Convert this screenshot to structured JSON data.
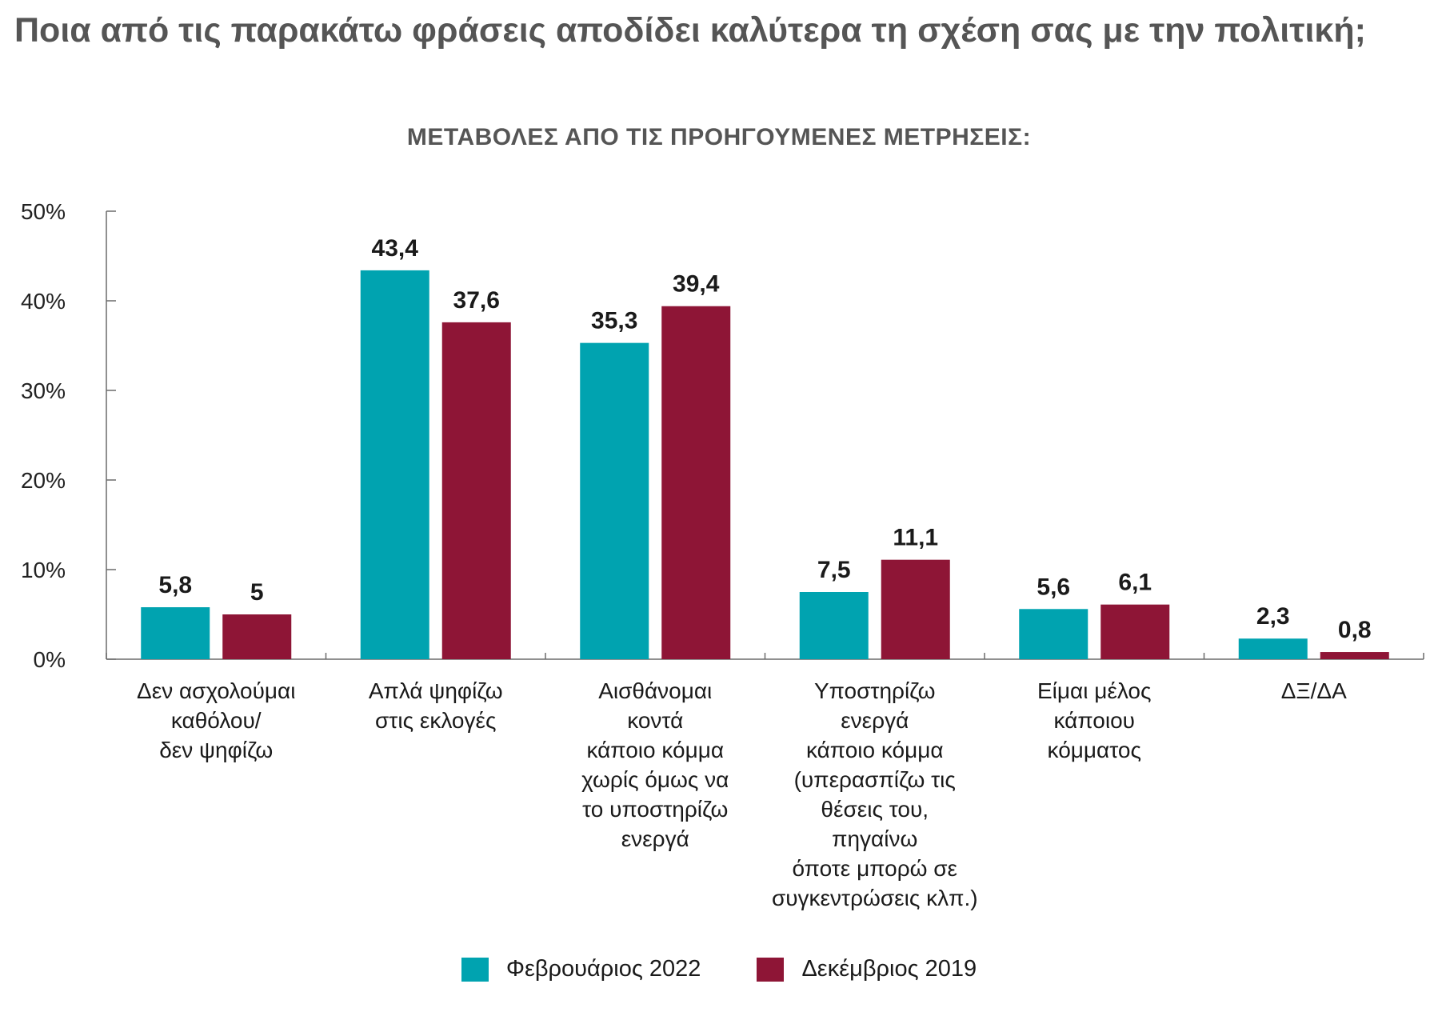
{
  "title": "Ποια από τις παρακάτω φράσεις αποδίδει καλύτερα τη σχέση σας με την πολιτική;",
  "subtitle": "ΜΕΤΑΒΟΛΕΣ ΑΠΟ ΤΙΣ ΠΡΟΗΓΟΥΜΕΝΕΣ ΜΕΤΡΗΣΕΙΣ:",
  "colors": {
    "series1": "#00a3b0",
    "series2": "#8e1536"
  },
  "chart_data": {
    "type": "bar",
    "categories": [
      [
        "Δεν ασχολούμαι",
        "καθόλου/",
        "δεν ψηφίζω"
      ],
      [
        "Απλά ψηφίζω",
        "στις εκλογές"
      ],
      [
        "Αισθάνομαι",
        "κοντά",
        "κάποιο κόμμα",
        "χωρίς όμως να",
        "το υποστηρίζω",
        "ενεργά"
      ],
      [
        "Υποστηρίζω",
        "ενεργά",
        "κάποιο κόμμα",
        "(υπερασπίζω τις",
        "θέσεις του,",
        "πηγαίνω",
        "όποτε μπορώ σε",
        "συγκεντρώσεις κλπ.)"
      ],
      [
        "Είμαι μέλος",
        "κάποιου",
        "κόμματος"
      ],
      [
        "ΔΞ/ΔΑ"
      ]
    ],
    "series": [
      {
        "name": "Φεβρουάριος 2022",
        "values": [
          5.8,
          43.4,
          35.3,
          7.5,
          5.6,
          2.3
        ],
        "labels": [
          "5,8",
          "43,4",
          "35,3",
          "7,5",
          "5,6",
          "2,3"
        ]
      },
      {
        "name": "Δεκέμβριος 2019",
        "values": [
          5,
          37.6,
          39.4,
          11.1,
          6.1,
          0.8
        ],
        "labels": [
          "5",
          "37,6",
          "39,4",
          "11,1",
          "6,1",
          "0,8"
        ]
      }
    ],
    "yticks": [
      "0%",
      "10%",
      "20%",
      "30%",
      "40%",
      "50%"
    ],
    "ylim": [
      0,
      50
    ],
    "grid": false,
    "legend": "bottom"
  }
}
